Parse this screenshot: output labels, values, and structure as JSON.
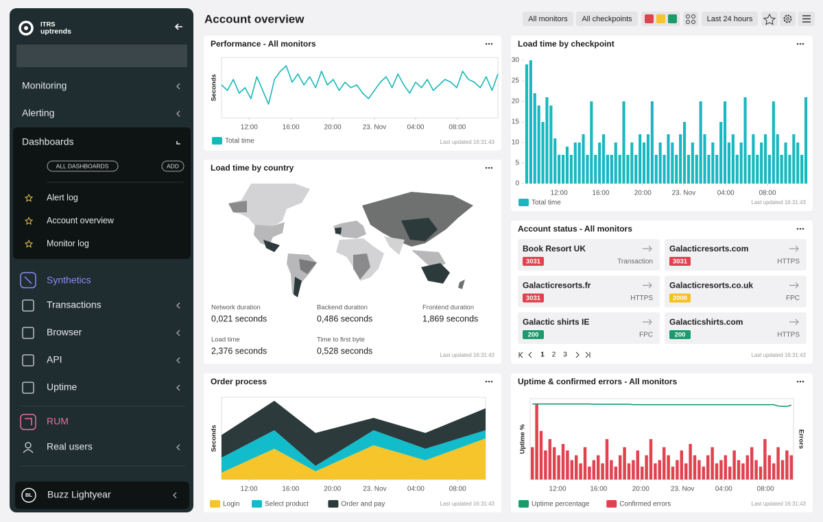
{
  "sidebar": {
    "brand_top": "ITRS",
    "brand_bottom": "uptrends",
    "items": [
      "Monitoring",
      "Alerting"
    ],
    "dashboards": {
      "title": "Dashboards",
      "all": "ALL DASHBOARDS",
      "add": "ADD",
      "links": [
        "Alert log",
        "Account overview",
        "Monitor log"
      ]
    },
    "synthetics": {
      "title": "Synthetics",
      "items": [
        "Transactions",
        "Browser",
        "API",
        "Uptime"
      ]
    },
    "rum": {
      "title": "RUM",
      "items": [
        "Real users"
      ]
    },
    "user": {
      "initials": "BL",
      "name": "Buzz Lightyear"
    }
  },
  "header": {
    "title": "Account overview",
    "filters": [
      "All monitors",
      "All checkpoints",
      "Last 24 hours"
    ]
  },
  "widgets": {
    "performance": {
      "title": "Performance - All monitors",
      "updated": "Last updated 16:31:43",
      "chart_data": {
        "type": "line",
        "y_label": "Seconds",
        "xlim": [
          0,
          47
        ],
        "ylim": [
          1.2,
          3.4
        ],
        "xticks": [
          {
            "value": 4.7,
            "label": "12:00"
          },
          {
            "value": 11.8,
            "label": "16:00"
          },
          {
            "value": 18.9,
            "label": "20:00"
          },
          {
            "value": 26,
            "label": "23. Nov"
          },
          {
            "value": 33,
            "label": "04:00"
          },
          {
            "value": 40.1,
            "label": "08:00"
          }
        ],
        "series": [
          {
            "name": "Total time",
            "color": "#17b8b8",
            "values": [
              2.4,
              2.2,
              2.6,
              2.1,
              2.3,
              1.9,
              2.7,
              2.2,
              1.7,
              2.6,
              2.9,
              3.1,
              2.5,
              2.8,
              2.4,
              2.7,
              2.3,
              2.9,
              2.4,
              2.6,
              2.2,
              2.5,
              2.3,
              2.4,
              2.1,
              1.9,
              2.2,
              2.5,
              2.7,
              2.3,
              2.8,
              2.4,
              2.1,
              2.5,
              2.3,
              2.6,
              2.2,
              2.4,
              2.6,
              2.5,
              2.3,
              2.9,
              2.6,
              2.5,
              2.3,
              2.7,
              2.2,
              2.8
            ]
          }
        ]
      }
    },
    "checkpoint": {
      "title": "Load time by checkpoint",
      "updated": "Last updated 16:31:43",
      "chart_data": {
        "type": "bar",
        "ylim": [
          0,
          30
        ],
        "yticks": [
          0,
          5,
          10,
          15,
          20,
          25,
          30
        ],
        "xticks": [
          {
            "value": 8,
            "label": "12:00"
          },
          {
            "value": 18.3,
            "label": "16:00"
          },
          {
            "value": 28.7,
            "label": "20:00"
          },
          {
            "value": 38.8,
            "label": "23. Nov"
          },
          {
            "value": 49.2,
            "label": "04:00"
          },
          {
            "value": 59.5,
            "label": "08:00"
          }
        ],
        "series": [
          {
            "name": "Total time",
            "color": "#17b8c0",
            "values": [
              29,
              30,
              22,
              19,
              15,
              21,
              19,
              11,
              7,
              7,
              9,
              7,
              10,
              10,
              12,
              7,
              20,
              7,
              10,
              12,
              7,
              7,
              10,
              7,
              20,
              7,
              10,
              7,
              12,
              10,
              12,
              20,
              7,
              10,
              7,
              12,
              10,
              7,
              12,
              15,
              7,
              10,
              7,
              20,
              12,
              7,
              10,
              7,
              15,
              20,
              10,
              12,
              7,
              10,
              21,
              7,
              12,
              7,
              10,
              12,
              7,
              20,
              12,
              7,
              10,
              7,
              12,
              10,
              7,
              21
            ]
          }
        ]
      }
    },
    "country": {
      "title": "Load time by country",
      "updated": "Last updated 16:31:43",
      "stats": [
        {
          "label": "Network duration",
          "value": "0,021 seconds"
        },
        {
          "label": "Backend duration",
          "value": "0,486 seconds"
        },
        {
          "label": "Frontend duration",
          "value": "1,869 seconds"
        },
        {
          "label": "Load time",
          "value": "2,376 seconds"
        },
        {
          "label": "Time to first byte",
          "value": "0,528 seconds"
        }
      ]
    },
    "status": {
      "title": "Account status - All monitors",
      "updated": "Last updated 16:31:43",
      "pages": [
        1,
        2,
        3
      ],
      "cards": [
        {
          "name": "Book Resort UK",
          "code": 3031,
          "kind": "Transaction",
          "color": "#e0434f"
        },
        {
          "name": "Galacticresorts.com",
          "code": 3031,
          "kind": "HTTPS",
          "color": "#e0434f"
        },
        {
          "name": "Galacticresorts.fr",
          "code": 3031,
          "kind": "HTTPS",
          "color": "#e0434f"
        },
        {
          "name": "Galacticresorts.co.uk",
          "code": 2000,
          "kind": "FPC",
          "color": "#f2c21b"
        },
        {
          "name": "Galactic shirts IE",
          "code": 200,
          "kind": "FPC",
          "color": "#1a9b6c"
        },
        {
          "name": "Galacticshirts.com",
          "code": 200,
          "kind": "HTTPS",
          "color": "#1a9b6c"
        }
      ]
    },
    "order": {
      "title": "Order process",
      "updated": "Last updated 16:31:43",
      "chart_data": {
        "type": "area",
        "y_label": "Seconds",
        "x": [
          0,
          1,
          1.78,
          2.88,
          3.86,
          5
        ],
        "xlim": [
          0,
          5
        ],
        "ylim": [
          0,
          120
        ],
        "xticks": [
          {
            "value": 0.52,
            "label": "12:00"
          },
          {
            "value": 1.31,
            "label": "16:00"
          },
          {
            "value": 2.1,
            "label": "20:00"
          },
          {
            "value": 2.9,
            "label": "23. Nov"
          },
          {
            "value": 3.68,
            "label": "04:00"
          },
          {
            "value": 4.47,
            "label": "08:00"
          }
        ],
        "series": [
          {
            "name": "Login",
            "color": "#f5c52b",
            "values": [
              10,
              45,
              12,
              50,
              28,
              60
            ]
          },
          {
            "name": "Select product",
            "color": "#13bccb",
            "values": [
              22,
              27,
              8,
              22,
              17,
              12
            ]
          },
          {
            "name": "Order and pay",
            "color": "#2c3a3b",
            "values": [
              33,
              43,
              48,
              18,
              23,
              32
            ]
          }
        ]
      }
    },
    "uptime": {
      "title": "Uptime & confirmed errors - All monitors",
      "updated": "Last updated 16:31:43",
      "chart_data": {
        "type": "bar",
        "y_label": "Uptime %",
        "y2_label": "Errors",
        "ylim": [
          0,
          100
        ],
        "y2lim": [
          0,
          50
        ],
        "xticks": [
          {
            "value": 5.75,
            "label": "12:00"
          },
          {
            "value": 15.1,
            "label": "16:00"
          },
          {
            "value": 24.7,
            "label": "20:00"
          },
          {
            "value": 34.2,
            "label": "23. Nov"
          },
          {
            "value": 43.6,
            "label": "04:00"
          },
          {
            "value": 53.1,
            "label": "08:00"
          }
        ],
        "series": [
          {
            "name": "Uptime percentage",
            "type": "line",
            "color": "#1a9b6c",
            "values": [
              93.5,
              93.5,
              93.5,
              93.5,
              93.5,
              93.5,
              93.5,
              93.5,
              93.5,
              93.5,
              93.5,
              93.5,
              93.5,
              93.5,
              93.2,
              93.2,
              93.2,
              93.2,
              93.2,
              93.2,
              93.2,
              93.2,
              93.2,
              92.6,
              92.6,
              92.6,
              92.6,
              92.6,
              92.6,
              92.6,
              92.6,
              92.6,
              92.6,
              92.6,
              92.6,
              92.6,
              92.6,
              92.6,
              92.6,
              92.6,
              92.6,
              92.6,
              92.6,
              92.6,
              92.6,
              92.6,
              92.6,
              92.6,
              92.6,
              92.6,
              92.6,
              92.6,
              92.6,
              92.6,
              92.6,
              92.6,
              91.0,
              90.5,
              90.5,
              92.0
            ]
          },
          {
            "name": "Confirmed errors",
            "axis": "y2",
            "color": "#e0434f",
            "values": [
              20,
              47,
              30,
              18,
              25,
              20,
              15,
              22,
              18,
              12,
              15,
              10,
              20,
              8,
              12,
              15,
              10,
              25,
              12,
              8,
              15,
              20,
              10,
              12,
              18,
              8,
              15,
              25,
              10,
              12,
              20,
              15,
              8,
              12,
              18,
              10,
              22,
              15,
              12,
              8,
              15,
              20,
              10,
              12,
              15,
              8,
              18,
              12,
              10,
              15,
              20,
              12,
              8,
              25,
              15,
              10,
              20,
              12,
              18,
              15
            ]
          }
        ]
      }
    }
  }
}
